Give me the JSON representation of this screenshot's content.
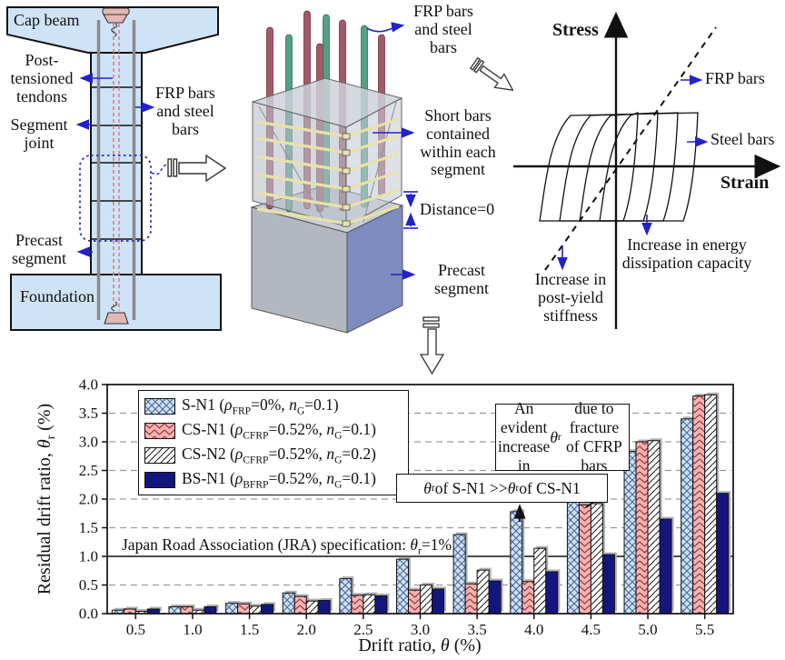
{
  "diagram_column": {
    "cap_beam": "Cap beam",
    "post_tensioned_tendons": "Post- tensioned tendons",
    "frp_steel_bars": "FRP bars and steel bars",
    "segment_joint": "Segment joint",
    "precast_segment": "Precast segment",
    "foundation": "Foundation"
  },
  "diagram_segment": {
    "frp_steel_bars": "FRP bars and steel bars",
    "short_bars": "Short bars contained within each segment",
    "distance": "Distance=0",
    "precast_segment": "Precast segment"
  },
  "diagram_stress_strain": {
    "stress": "Stress",
    "strain": "Strain",
    "frp_bars": "FRP bars",
    "steel_bars": "Steel bars",
    "post_yield": "Increase in post-yield stiffness",
    "energy": "Increase in energy dissipation capacity"
  },
  "chart_data": {
    "type": "bar",
    "title": "",
    "xlabel_rich": [
      "Drift ratio, ",
      {
        "t": "θ",
        "i": true
      },
      " (%)"
    ],
    "ylabel_rich": [
      "Residual drift ratio, ",
      {
        "t": "θ",
        "i": true
      },
      {
        "t": "r",
        "sub": true
      },
      " (%)"
    ],
    "categories": [
      "0.5",
      "1.0",
      "1.5",
      "2.0",
      "2.5",
      "3.0",
      "3.5",
      "4.0",
      "4.5",
      "5.0",
      "5.5"
    ],
    "yticks": [
      "0.0",
      "0.5",
      "1.0",
      "1.5",
      "2.0",
      "2.5",
      "3.0",
      "3.5",
      "4.0"
    ],
    "ylim": [
      0,
      4.0
    ],
    "ytick_step": 0.5,
    "grid": "dashed horizontal lines each 0.5, solid line at 1.0",
    "legend_position": "top-left",
    "series": [
      {
        "name": "S-N1",
        "pattern": "blue-crosshatch",
        "label_rich": [
          "S-N1 (",
          {
            "t": "ρ",
            "i": true
          },
          {
            "t": "FRP",
            "sub": true
          },
          "=0%, ",
          {
            "t": "n",
            "i": true
          },
          {
            "t": "G",
            "sub": true
          },
          "=0.1)"
        ],
        "values": [
          0.06,
          0.12,
          0.18,
          0.36,
          0.61,
          0.95,
          1.38,
          1.78,
          2.27,
          2.83,
          3.4
        ]
      },
      {
        "name": "CS-N1",
        "pattern": "pink-hatch",
        "label_rich": [
          "CS-N1 (",
          {
            "t": "ρ",
            "i": true
          },
          {
            "t": "CFRP",
            "sub": true
          },
          "=0.52%, ",
          {
            "t": "n",
            "i": true
          },
          {
            "t": "G",
            "sub": true
          },
          "=0.1)"
        ],
        "values": [
          0.08,
          0.12,
          0.17,
          0.3,
          0.32,
          0.41,
          0.52,
          0.56,
          1.9,
          3.0,
          3.8
        ]
      },
      {
        "name": "CS-N2",
        "pattern": "white-hatch",
        "label_rich": [
          "CS-N2 (",
          {
            "t": "ρ",
            "i": true
          },
          {
            "t": "CFRP",
            "sub": true
          },
          "=0.52%, ",
          {
            "t": "n",
            "i": true
          },
          {
            "t": "G",
            "sub": true
          },
          "=0.2)"
        ],
        "values": [
          0.04,
          0.06,
          0.13,
          0.22,
          0.33,
          0.5,
          0.76,
          1.14,
          1.92,
          3.02,
          3.82
        ]
      },
      {
        "name": "BS-N1",
        "pattern": "navy-solid",
        "label_rich": [
          "BS-N1 (",
          {
            "t": "ρ",
            "i": true
          },
          {
            "t": "BFRP",
            "sub": true
          },
          "=0.52%, ",
          {
            "t": "n",
            "i": true
          },
          {
            "t": "G",
            "sub": true
          },
          "=0.1)"
        ],
        "values": [
          0.08,
          0.12,
          0.16,
          0.23,
          0.31,
          0.43,
          0.57,
          0.73,
          1.03,
          1.65,
          2.1
        ]
      }
    ],
    "reference_line": {
      "value": 1.0,
      "label_rich": [
        "Japan Road Association (JRA) specification: ",
        {
          "t": "θ",
          "i": true
        },
        {
          "t": "r",
          "sub": true
        },
        "=1%"
      ]
    },
    "annotations": [
      {
        "id": "sn1-vs-csn1",
        "label_rich": [
          {
            "t": "θ",
            "i": true
          },
          {
            "t": "r",
            "sub": true
          },
          " of S-N1 >> ",
          {
            "t": "θ",
            "i": true
          },
          {
            "t": "r",
            "sub": true
          },
          " of CS-N1"
        ]
      },
      {
        "id": "evident-increase",
        "label_rich": [
          "An evident increase in ",
          {
            "t": "θ",
            "i": true
          },
          {
            "t": "r",
            "sub": true
          },
          " due to fracture of CFRP bars"
        ]
      }
    ],
    "colors": {
      "s_n1_fill": "#cfe0f6",
      "s_n1_hatch": "#4a6899",
      "cs_n1_fill": "#f7b3b3",
      "cs_n1_hatch": "#9c3636",
      "cs_n2_fill": "#ffffff",
      "cs_n2_hatch": "#222222",
      "bs_n1_fill": "#15157e",
      "annotation_blue": "#2222cc",
      "diagram_light_blue": "#cfe3f7"
    }
  }
}
